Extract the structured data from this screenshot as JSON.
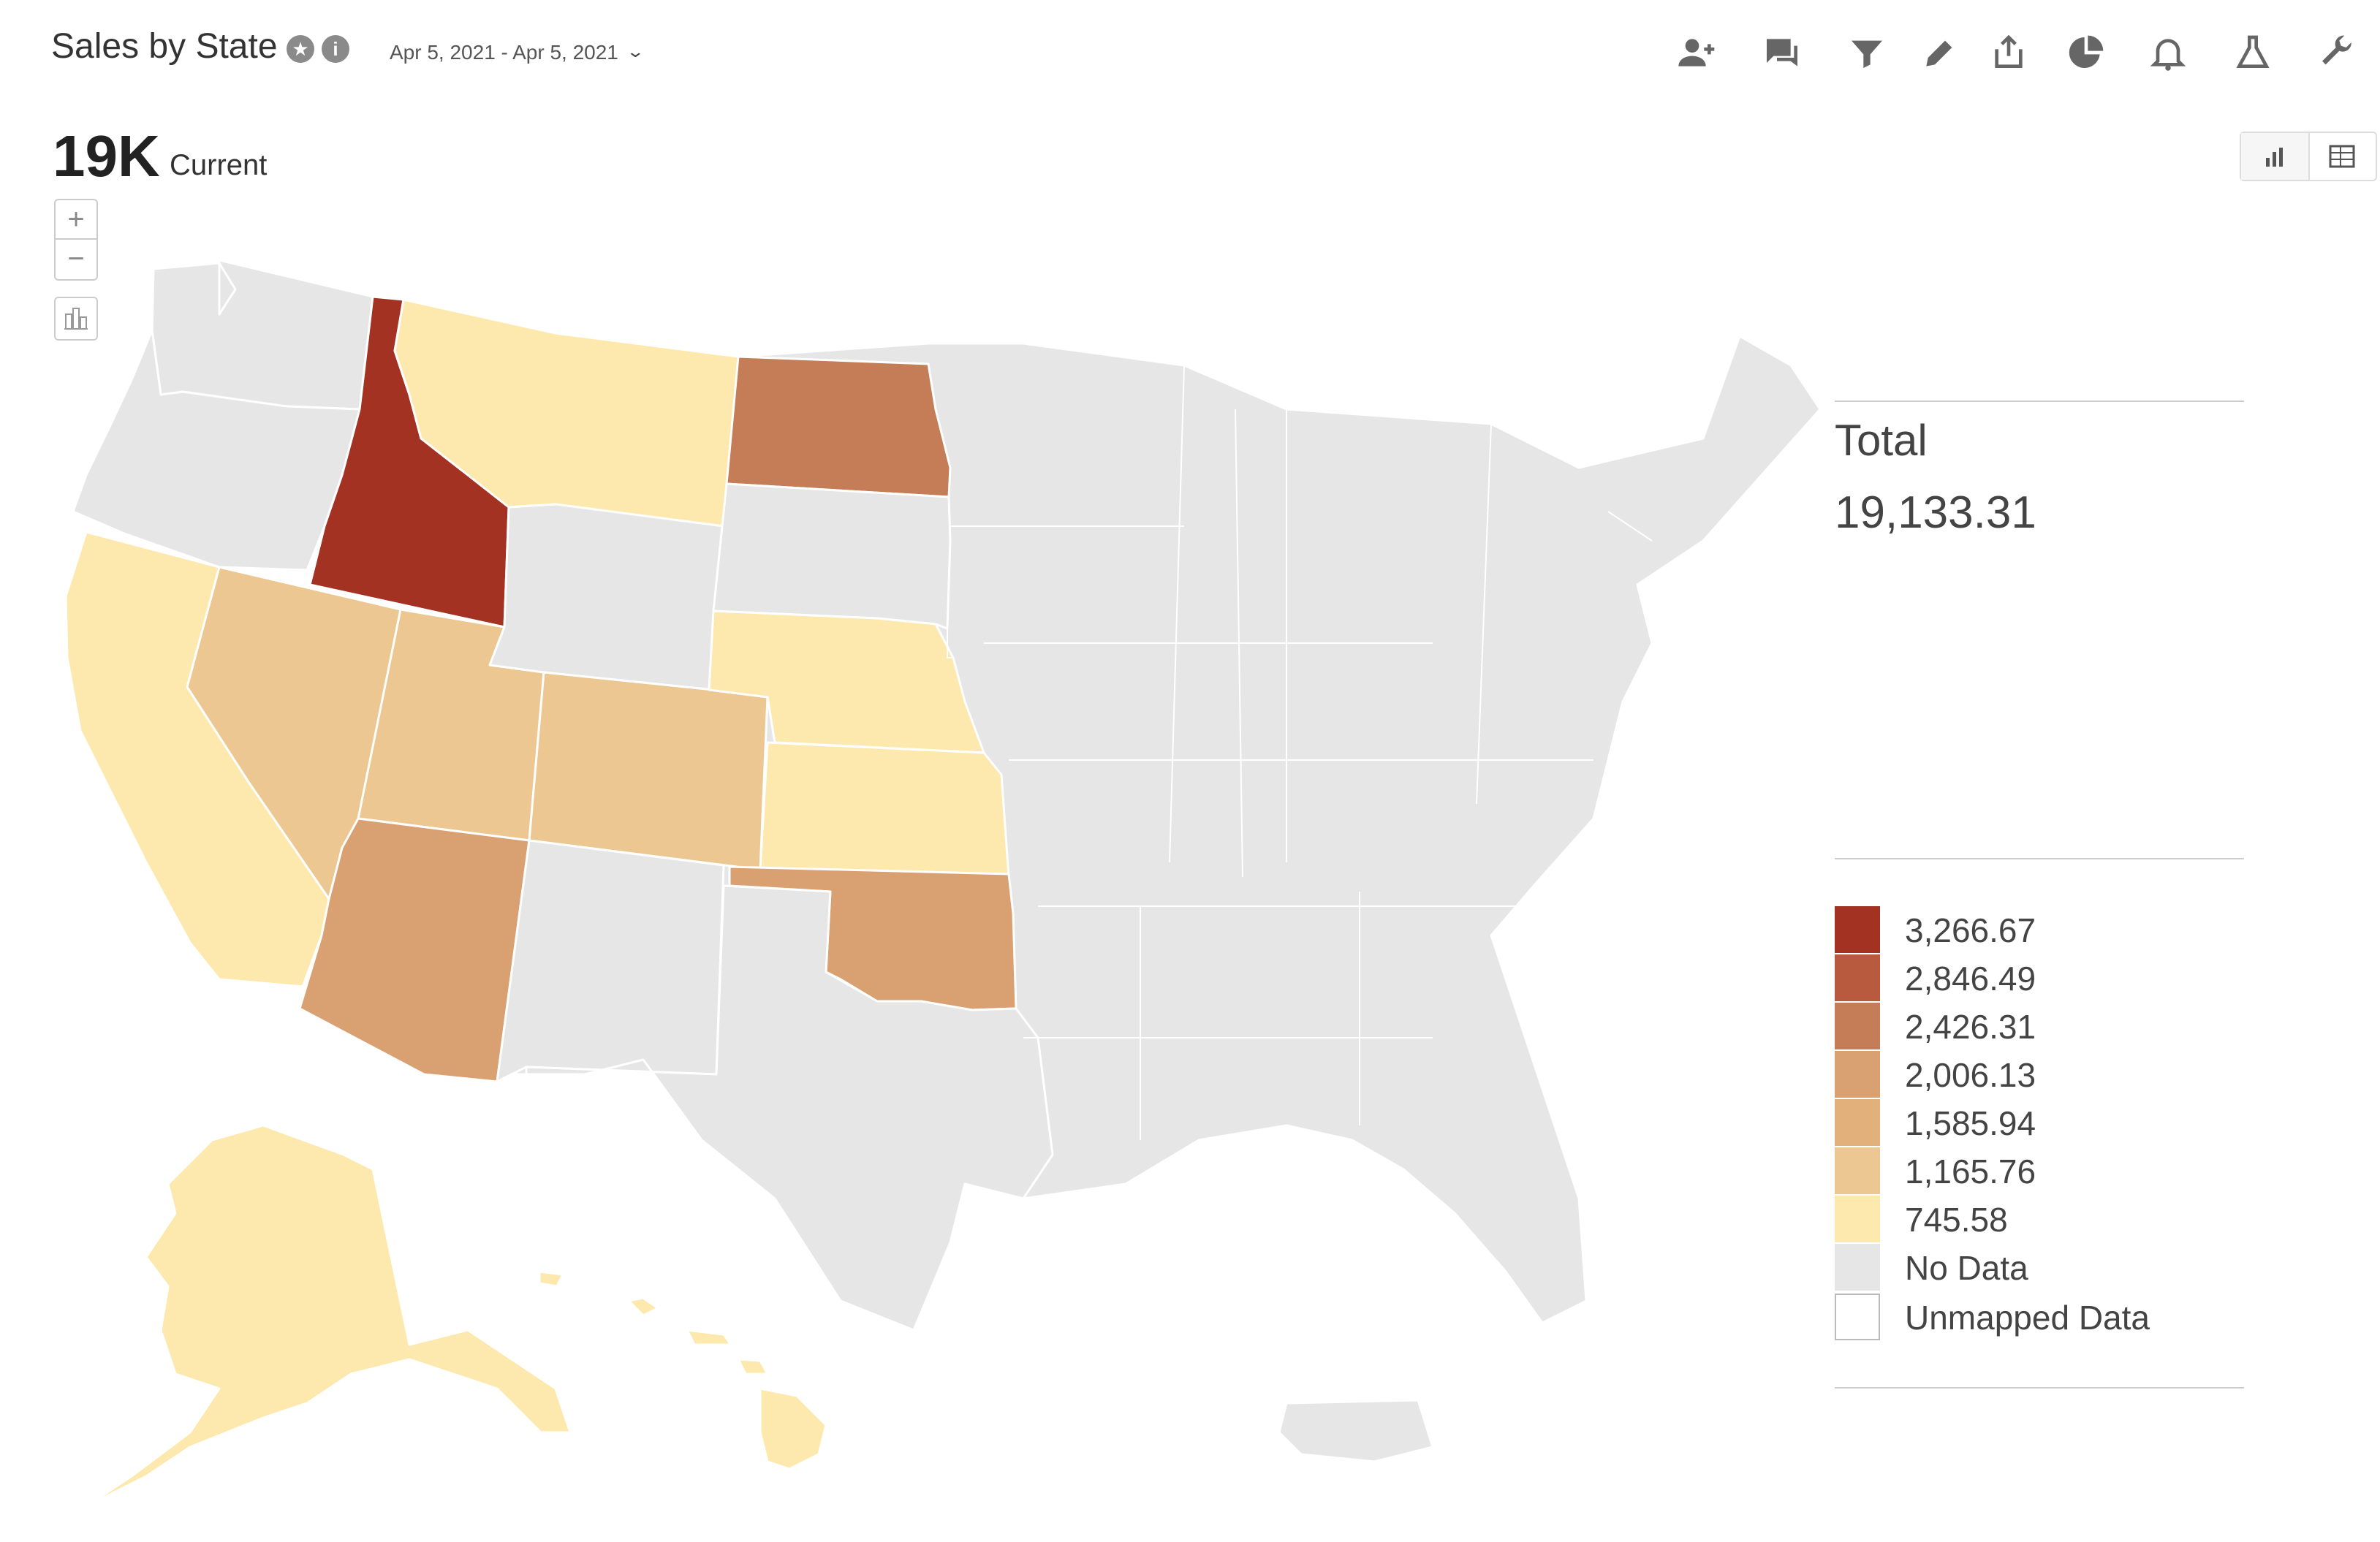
{
  "header": {
    "title": "Sales by State",
    "date_range": "Apr 5, 2021 - Apr 5, 2021"
  },
  "toolbar": {
    "icons": [
      "add-user-icon",
      "comments-icon",
      "filter-icon",
      "pencil-icon",
      "share-icon",
      "pie-chart-icon",
      "bell-icon",
      "flask-icon",
      "wrench-icon"
    ]
  },
  "summary": {
    "value": "19K",
    "label": "Current"
  },
  "map_controls": {
    "zoom_in": "+",
    "zoom_out": "−"
  },
  "total": {
    "label": "Total",
    "value": "19,133.31"
  },
  "legend": {
    "items": [
      {
        "label": "3,266.67",
        "color": "#a33222"
      },
      {
        "label": "2,846.49",
        "color": "#b85a3e"
      },
      {
        "label": "2,426.31",
        "color": "#c47d57"
      },
      {
        "label": "2,006.13",
        "color": "#d9a071"
      },
      {
        "label": "1,585.94",
        "color": "#e2b07b"
      },
      {
        "label": "1,165.76",
        "color": "#ecc791"
      },
      {
        "label": "745.58",
        "color": "#fde9ae"
      }
    ],
    "no_data": {
      "label": "No Data",
      "color": "#e6e6e6"
    },
    "unmapped": {
      "label": "Unmapped Data",
      "color": "#ffffff"
    }
  },
  "colors": {
    "no_data": "#e6e6e6",
    "state_border": "#ffffff"
  },
  "map_data": {
    "WA": null,
    "OR": null,
    "CA": "#fde9ae",
    "ID": "#a33222",
    "MT": "#fde9ae",
    "NV": "#ecc791",
    "UT": "#ecc791",
    "WY": null,
    "CO": "#ecc791",
    "AZ": "#d9a071",
    "NM": null,
    "ND": "#c47d57",
    "SD": null,
    "NE": "#fde9ae",
    "KS": "#fde9ae",
    "OK": "#d9a071",
    "TX": null,
    "AK": "#fde9ae",
    "HI": "#fde9ae"
  }
}
